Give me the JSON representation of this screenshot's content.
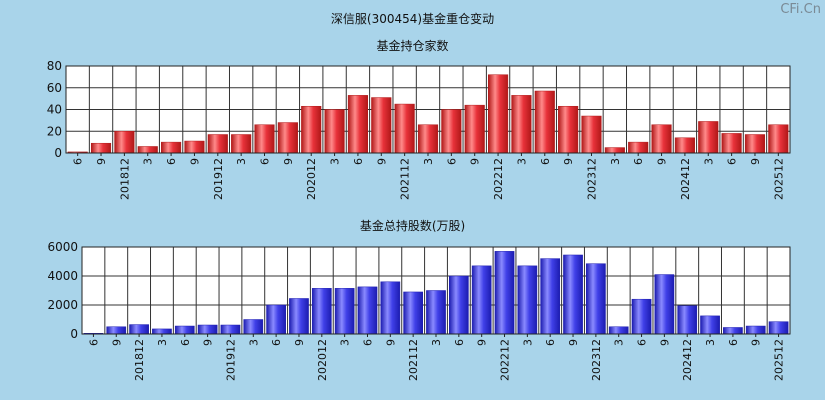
{
  "page": {
    "title": "深信服(300454)基金重仓变动",
    "watermark": "CFi.Cn"
  },
  "chart_data": [
    {
      "type": "bar",
      "title": "基金持仓家数",
      "color": "#e8323a",
      "ylim": [
        0,
        80
      ],
      "yticks": [
        0,
        20,
        40,
        60,
        80
      ],
      "grid": true,
      "categories": [
        "201806",
        "201809",
        "201812",
        "201903",
        "201906",
        "201909",
        "201912",
        "202003",
        "202006",
        "202009",
        "202012",
        "202103",
        "202106",
        "202109",
        "202112",
        "202203",
        "202206",
        "202209",
        "202212",
        "202303",
        "202306",
        "202309",
        "202312",
        "202403",
        "202406",
        "202409",
        "202412",
        "202503",
        "202506",
        "202509",
        "202512"
      ],
      "tick_labels": [
        "6",
        "9",
        "201812",
        "3",
        "6",
        "9",
        "201912",
        "3",
        "6",
        "9",
        "202012",
        "3",
        "6",
        "9",
        "202112",
        "3",
        "6",
        "9",
        "202212",
        "3",
        "6",
        "9",
        "202312",
        "3",
        "6",
        "9",
        "202412",
        "3",
        "6",
        "9",
        "202512"
      ],
      "values": [
        1,
        9,
        20,
        6,
        10,
        11,
        17,
        17,
        26,
        28,
        43,
        40,
        53,
        51,
        45,
        26,
        40,
        44,
        72,
        53,
        57,
        43,
        34,
        5,
        10,
        26,
        14,
        29,
        18,
        17,
        26
      ]
    },
    {
      "type": "bar",
      "title": "基金总持股数(万股)",
      "color": "#4040e8",
      "ylim": [
        0,
        6000
      ],
      "yticks": [
        0,
        2000,
        4000,
        6000
      ],
      "grid": true,
      "categories": [
        "201806",
        "201809",
        "201812",
        "201903",
        "201906",
        "201909",
        "201912",
        "202003",
        "202006",
        "202009",
        "202012",
        "202103",
        "202106",
        "202109",
        "202112",
        "202203",
        "202206",
        "202209",
        "202212",
        "202303",
        "202306",
        "202309",
        "202312",
        "202403",
        "202406",
        "202409",
        "202412",
        "202503",
        "202506",
        "202509",
        "202512"
      ],
      "tick_labels": [
        "6",
        "9",
        "201812",
        "3",
        "6",
        "9",
        "201912",
        "3",
        "6",
        "9",
        "202012",
        "3",
        "6",
        "9",
        "202112",
        "3",
        "6",
        "9",
        "202212",
        "3",
        "6",
        "9",
        "202312",
        "3",
        "6",
        "9",
        "202412",
        "3",
        "6",
        "9",
        "202512"
      ],
      "values": [
        50,
        500,
        650,
        350,
        550,
        620,
        620,
        1000,
        2000,
        2450,
        3150,
        3150,
        3250,
        3600,
        2900,
        3000,
        4000,
        4700,
        5700,
        4700,
        5200,
        5450,
        4850,
        500,
        2400,
        4100,
        1950,
        1250,
        450,
        550,
        850
      ]
    }
  ]
}
